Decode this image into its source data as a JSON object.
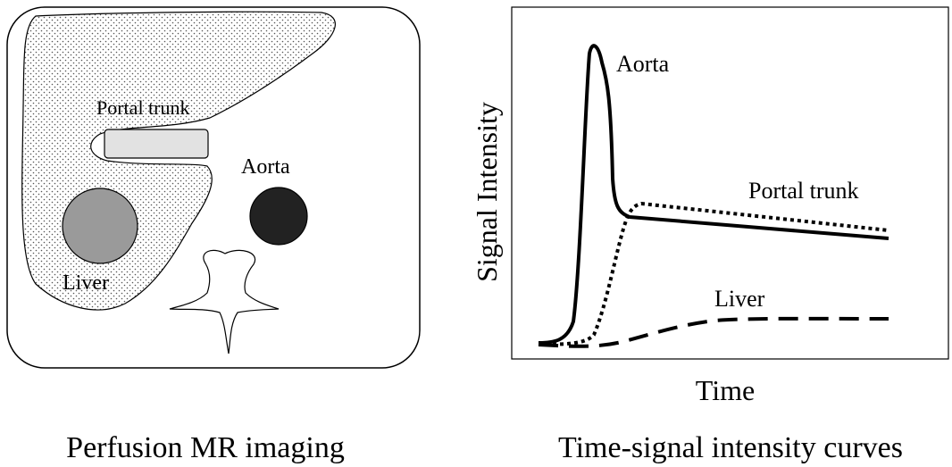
{
  "left_panel": {
    "caption": "Perfusion MR imaging",
    "labels": {
      "portal_trunk": "Portal trunk",
      "aorta": "Aorta",
      "liver": "Liver"
    }
  },
  "right_panel": {
    "caption": "Time-signal intensity curves",
    "y_axis_label": "Signal Intensity",
    "x_axis_label": "Time",
    "curve_labels": {
      "aorta": "Aorta",
      "portal_trunk": "Portal trunk",
      "liver": "Liver"
    }
  }
}
